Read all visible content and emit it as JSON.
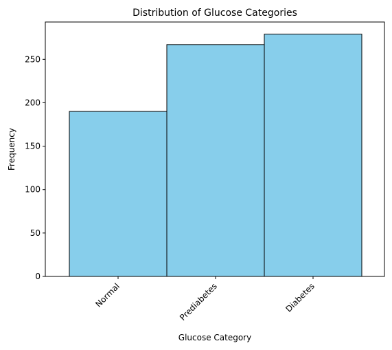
{
  "chart_data": {
    "type": "bar",
    "title": "Distribution of Glucose Categories",
    "xlabel": "Glucose Category",
    "ylabel": "Frequency",
    "categories": [
      "Normal",
      "Prediabetes",
      "Diabetes"
    ],
    "values": [
      190,
      267,
      279
    ],
    "ylim": [
      0,
      293
    ],
    "yticks": [
      0,
      50,
      100,
      150,
      200,
      250
    ],
    "bar_color": "#87ceeb",
    "edge_color": "#000000",
    "grid": false,
    "legend": "none"
  }
}
